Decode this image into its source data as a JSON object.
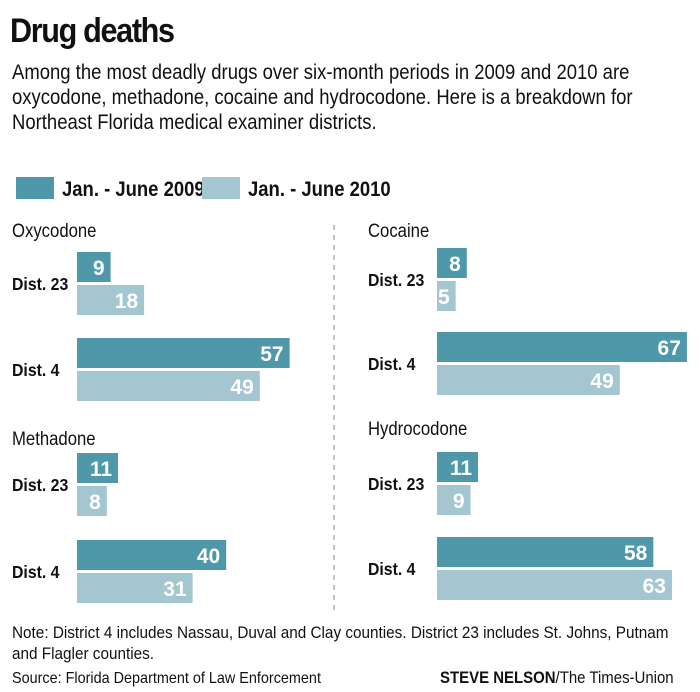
{
  "header": {
    "title": "Drug deaths",
    "subtitle": "Among the most deadly drugs over six-month periods in 2009 and 2010 are oxycodone, methadone, cocaine and hydrocodone. Here is a breakdown for Northeast Florida medical examiner districts."
  },
  "chart_data": {
    "type": "bar",
    "orientation": "horizontal",
    "legend": {
      "placement": "top-left"
    },
    "series": [
      {
        "name": "Jan. - June 2009",
        "color": "#4f98aa"
      },
      {
        "name": "Jan. - June 2010",
        "color": "#a3c6d1"
      }
    ],
    "panels": [
      {
        "title": "Oxycodone",
        "groups": [
          {
            "label": "Dist. 23",
            "values": [
              9,
              18
            ]
          },
          {
            "label": "Dist. 4",
            "values": [
              57,
              49
            ]
          }
        ]
      },
      {
        "title": "Methadone",
        "groups": [
          {
            "label": "Dist. 23",
            "values": [
              11,
              8
            ]
          },
          {
            "label": "Dist. 4",
            "values": [
              40,
              31
            ]
          }
        ]
      },
      {
        "title": "Cocaine",
        "groups": [
          {
            "label": "Dist. 23",
            "values": [
              8,
              5
            ]
          },
          {
            "label": "Dist. 4",
            "values": [
              67,
              49
            ]
          }
        ]
      },
      {
        "title": "Hydrocodone",
        "groups": [
          {
            "label": "Dist. 23",
            "values": [
              11,
              9
            ]
          },
          {
            "label": "Dist. 4",
            "values": [
              58,
              63
            ]
          }
        ]
      }
    ]
  },
  "footer": {
    "note": "Note: District 4 includes Nassau, Duval and Clay counties. District 23 includes St. Johns, Putnam and Flagler counties.",
    "source": "Source: Florida Department of Law Enforcement",
    "credit_name": "STEVE NELSON",
    "credit_org": "/The Times-Union"
  }
}
